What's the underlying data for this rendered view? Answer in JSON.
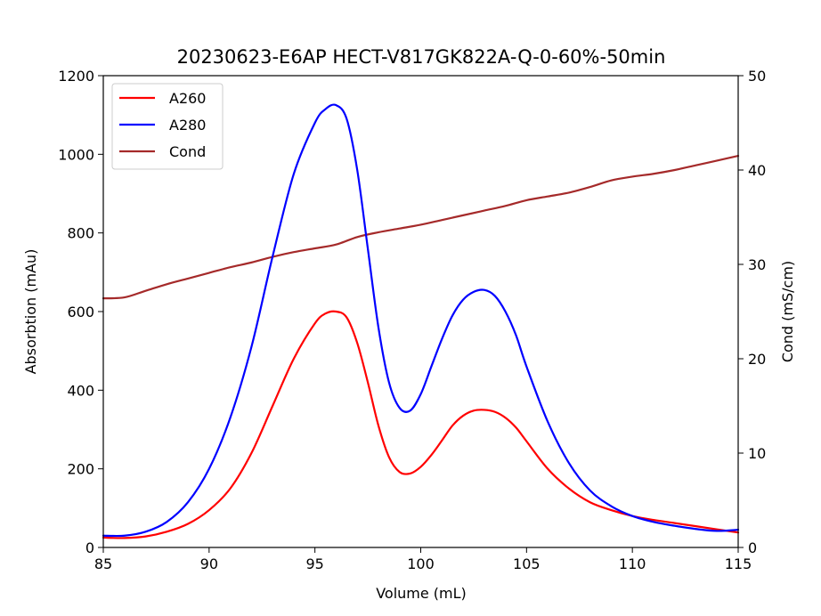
{
  "chart_data": {
    "type": "line",
    "title": "20230623-E6AP HECT-V817GK822A-Q-0-60%-50min",
    "xlabel": "Volume (mL)",
    "ylabel": "Absorbtion (mAu)",
    "y2label": "Cond (mS/cm)",
    "xlim": [
      85,
      115
    ],
    "ylim": [
      0,
      1200
    ],
    "y2lim": [
      0,
      50
    ],
    "xticks": [
      "85",
      "90",
      "95",
      "100",
      "105",
      "110",
      "115"
    ],
    "yticks": [
      "0",
      "200",
      "400",
      "600",
      "800",
      "1000",
      "1200"
    ],
    "y2ticks": [
      "0",
      "10",
      "20",
      "30",
      "40",
      "50"
    ],
    "grid": false,
    "legend": "top-left",
    "series": [
      {
        "name": "A260",
        "color": "#ff0000",
        "axis": "left",
        "x": [
          85,
          86,
          87,
          88,
          89,
          90,
          91,
          92,
          93,
          94,
          95,
          95.5,
          96,
          96.5,
          97,
          97.5,
          98,
          98.5,
          99,
          99.5,
          100,
          100.5,
          101,
          101.5,
          102,
          102.5,
          103,
          103.5,
          104,
          104.5,
          105,
          106,
          107,
          108,
          109,
          110,
          111,
          112,
          113,
          114,
          115
        ],
        "y": [
          25,
          24,
          28,
          40,
          60,
          95,
          150,
          240,
          360,
          480,
          570,
          595,
          600,
          585,
          520,
          420,
          310,
          230,
          192,
          188,
          205,
          235,
          272,
          310,
          335,
          348,
          350,
          345,
          330,
          305,
          270,
          200,
          150,
          115,
          95,
          80,
          70,
          62,
          54,
          46,
          38
        ]
      },
      {
        "name": "A280",
        "color": "#0000ff",
        "axis": "left",
        "x": [
          85,
          86,
          87,
          88,
          89,
          90,
          91,
          92,
          93,
          94,
          95,
          95.5,
          96,
          96.5,
          97,
          97.5,
          98,
          98.5,
          99,
          99.5,
          100,
          100.5,
          101,
          101.5,
          102,
          102.5,
          103,
          103.5,
          104,
          104.5,
          105,
          106,
          107,
          108,
          109,
          110,
          111,
          112,
          113,
          114,
          115
        ],
        "y": [
          30,
          30,
          40,
          65,
          115,
          200,
          330,
          510,
          740,
          950,
          1080,
          1115,
          1125,
          1090,
          960,
          760,
          560,
          420,
          355,
          348,
          390,
          460,
          530,
          590,
          630,
          650,
          655,
          640,
          600,
          540,
          460,
          320,
          215,
          145,
          105,
          80,
          65,
          55,
          47,
          42,
          45
        ]
      },
      {
        "name": "Cond",
        "color": "#a52a2a",
        "axis": "right",
        "x": [
          85,
          86,
          87,
          88,
          89,
          90,
          91,
          92,
          93,
          94,
          95,
          96,
          97,
          98,
          99,
          100,
          101,
          102,
          103,
          104,
          105,
          106,
          107,
          108,
          109,
          110,
          111,
          112,
          113,
          114,
          115
        ],
        "y": [
          26.4,
          26.5,
          27.2,
          27.9,
          28.5,
          29.1,
          29.7,
          30.2,
          30.8,
          31.3,
          31.7,
          32.1,
          32.9,
          33.4,
          33.8,
          34.2,
          34.7,
          35.2,
          35.7,
          36.2,
          36.8,
          37.2,
          37.6,
          38.2,
          38.9,
          39.3,
          39.6,
          40.0,
          40.5,
          41.0,
          41.5
        ]
      }
    ]
  }
}
